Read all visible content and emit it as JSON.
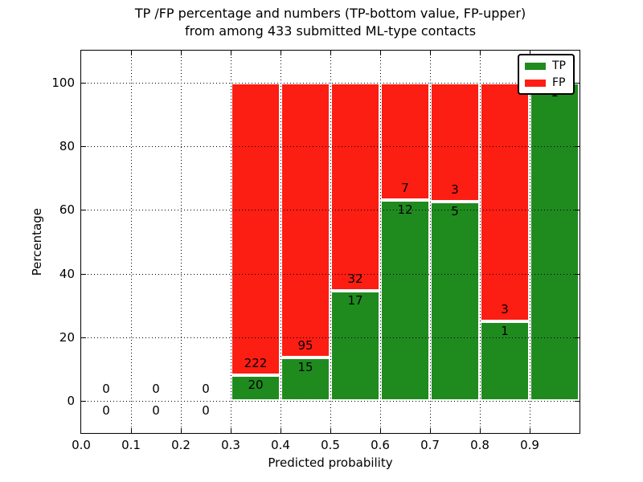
{
  "title": {
    "line1": "TP /FP percentage and numbers (TP-bottom value, FP-upper)",
    "line2": "from among 433 submitted ML-type contacts"
  },
  "axes": {
    "xlabel": "Predicted probability",
    "ylabel": "Percentage",
    "x_tick_labels": [
      "0.0",
      "0.1",
      "0.2",
      "0.3",
      "0.4",
      "0.5",
      "0.6",
      "0.7",
      "0.8",
      "0.9"
    ],
    "x_tick_values": [
      0.0,
      0.1,
      0.2,
      0.3,
      0.4,
      0.5,
      0.6,
      0.7,
      0.8,
      0.9
    ],
    "y_tick_labels": [
      "0",
      "20",
      "40",
      "60",
      "80",
      "100"
    ],
    "y_tick_values": [
      0,
      20,
      40,
      60,
      80,
      100
    ]
  },
  "legend": {
    "items": [
      {
        "label": "TP",
        "color": "#1f8b1f"
      },
      {
        "label": "FP",
        "color": "#fc1d13"
      }
    ]
  },
  "colors": {
    "tp": "#1f8b1f",
    "fp": "#fc1d13",
    "grid": "#000000",
    "background": "#ffffff",
    "bar_edge": "#ffffff"
  },
  "chart_data": {
    "type": "bar",
    "stacked": true,
    "unit": "percent",
    "title": "TP /FP percentage and numbers (TP-bottom value, FP-upper) from among 433 submitted ML-type contacts",
    "xlabel": "Predicted probability",
    "ylabel": "Percentage",
    "total_contacts": 433,
    "bin_edges": [
      0.0,
      0.1,
      0.2,
      0.3,
      0.4,
      0.5,
      0.6,
      0.7,
      0.8,
      0.9,
      1.0
    ],
    "bin_centers": [
      0.05,
      0.15,
      0.25,
      0.35,
      0.45,
      0.55,
      0.65,
      0.75,
      0.85,
      0.95
    ],
    "series": [
      {
        "name": "TP",
        "color": "#1f8b1f",
        "counts": [
          0,
          0,
          0,
          20,
          15,
          17,
          12,
          5,
          1,
          1
        ],
        "percent": [
          0,
          0,
          0,
          8.26,
          13.64,
          34.69,
          63.16,
          62.5,
          25.0,
          100.0
        ]
      },
      {
        "name": "FP",
        "color": "#fc1d13",
        "counts": [
          0,
          0,
          0,
          222,
          95,
          32,
          7,
          3,
          3,
          0
        ],
        "percent": [
          0,
          0,
          0,
          91.74,
          86.36,
          65.31,
          36.84,
          37.5,
          75.0,
          0.0
        ]
      }
    ],
    "annotation_rule": "FP count above TP/FP boundary, TP count below boundary",
    "xlim": [
      0.0,
      1.0
    ],
    "ylim": [
      -10,
      110
    ],
    "grid": "dotted",
    "legend_position": "upper right"
  }
}
